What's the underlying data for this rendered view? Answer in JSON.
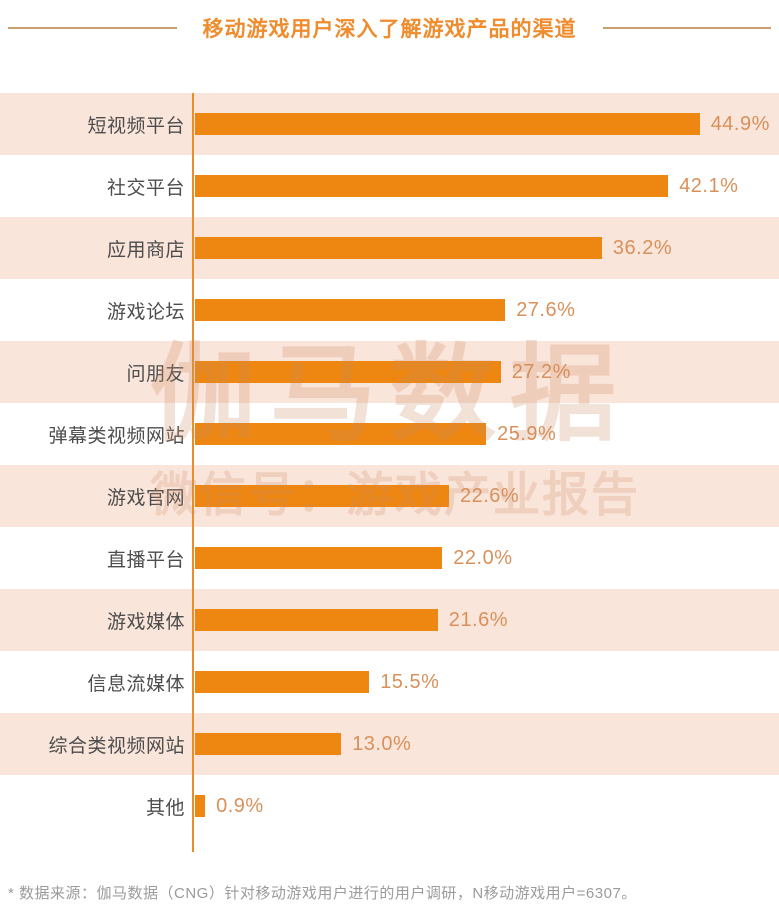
{
  "header": {
    "title": "移动游戏用户深入了解游戏产品的渠道"
  },
  "watermark": {
    "line1": "伽马数据",
    "line2": "微信号：游戏产业报告"
  },
  "footer": {
    "note": "*  数据来源：伽马数据（CNG）针对移动游戏用户进行的用户调研，N移动游戏用户=6307。"
  },
  "colors": {
    "bar": "#ed8712",
    "row_band": "#fae5da",
    "axis_line": "#e98e2b",
    "title_text": "#ee8c2e",
    "title_rule": "#c9a06b",
    "category_label": "#4d4d4d",
    "value_label": "#d9905a",
    "footer_text": "#9b9b9b"
  },
  "chart_data": {
    "type": "bar",
    "orientation": "horizontal",
    "title": "移动游戏用户深入了解游戏产品的渠道",
    "unit": "%",
    "xlim": [
      0,
      50
    ],
    "grid": false,
    "legend": false,
    "categories": [
      "短视频平台",
      "社交平台",
      "应用商店",
      "游戏论坛",
      "问朋友",
      "弹幕类视频网站",
      "游戏官网",
      "直播平台",
      "游戏媒体",
      "信息流媒体",
      "综合类视频网站",
      "其他"
    ],
    "values": [
      44.9,
      42.1,
      36.2,
      27.6,
      27.2,
      25.9,
      22.6,
      22.0,
      21.6,
      15.5,
      13.0,
      0.9
    ],
    "value_labels": [
      "44.9%",
      "42.1%",
      "36.2%",
      "27.6%",
      "27.2%",
      "25.9%",
      "22.6%",
      "22.0%",
      "21.6%",
      "15.5%",
      "13.0%",
      "0.9%"
    ],
    "row_band_pattern": "odd rows (1st, 3rd, ...) have light peach background stripes"
  }
}
